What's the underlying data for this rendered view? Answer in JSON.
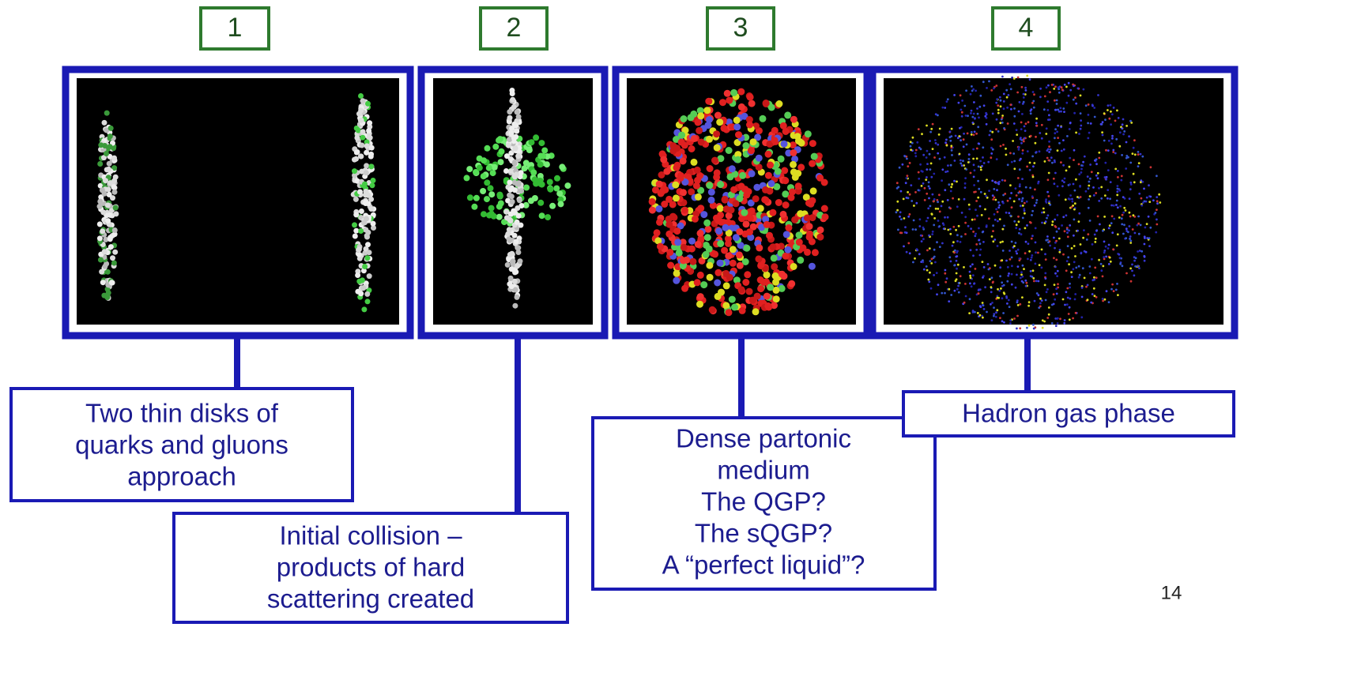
{
  "stages": [
    {
      "number": "1",
      "caption": [
        "Two thin disks of",
        "quarks and gluons",
        "approach"
      ]
    },
    {
      "number": "2",
      "caption": [
        "Initial collision –",
        "products of hard",
        "scattering created"
      ]
    },
    {
      "number": "3",
      "caption": [
        "Dense partonic",
        "medium",
        "The QGP?",
        "The sQGP?",
        "A “perfect liquid”?"
      ]
    },
    {
      "number": "4",
      "caption": [
        "Hadron gas phase"
      ]
    }
  ],
  "page_number": "14"
}
